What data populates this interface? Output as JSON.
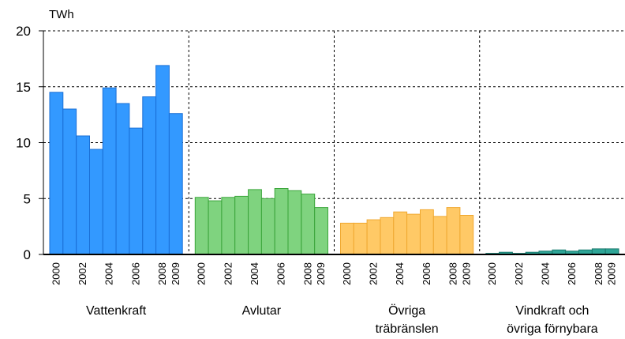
{
  "chart_data": {
    "type": "bar",
    "unit_label": "TWh",
    "ylim": [
      0,
      20
    ],
    "yticks": [
      0,
      5,
      10,
      15,
      20
    ],
    "grid": true,
    "years": [
      2000,
      2001,
      2002,
      2003,
      2004,
      2005,
      2006,
      2007,
      2008,
      2009
    ],
    "year_tick_labels": [
      "2000",
      "",
      "2002",
      "",
      "2004",
      "",
      "2006",
      "",
      "2008",
      "2009"
    ],
    "groups": [
      {
        "label_lines": [
          "Vattenkraft"
        ],
        "color": "#3399ff",
        "edge": "#1a6fd6",
        "values": [
          14.5,
          13.0,
          10.6,
          9.4,
          14.9,
          13.5,
          11.3,
          14.1,
          16.9,
          12.6
        ]
      },
      {
        "label_lines": [
          "Avlutar"
        ],
        "color": "#7fd37f",
        "edge": "#3aa53a",
        "values": [
          5.1,
          4.8,
          5.1,
          5.2,
          5.8,
          5.0,
          5.9,
          5.7,
          5.4,
          4.2
        ]
      },
      {
        "label_lines": [
          "Övriga",
          "träbränslen"
        ],
        "color": "#ffc966",
        "edge": "#f0a830",
        "values": [
          2.8,
          2.8,
          3.1,
          3.3,
          3.8,
          3.6,
          4.0,
          3.4,
          4.2,
          3.5
        ]
      },
      {
        "label_lines": [
          "Vindkraft och",
          "övriga förnybara"
        ],
        "color": "#2ea597",
        "edge": "#1b7a6e",
        "values": [
          0.1,
          0.2,
          0.1,
          0.2,
          0.3,
          0.4,
          0.3,
          0.4,
          0.5,
          0.5
        ]
      }
    ]
  }
}
